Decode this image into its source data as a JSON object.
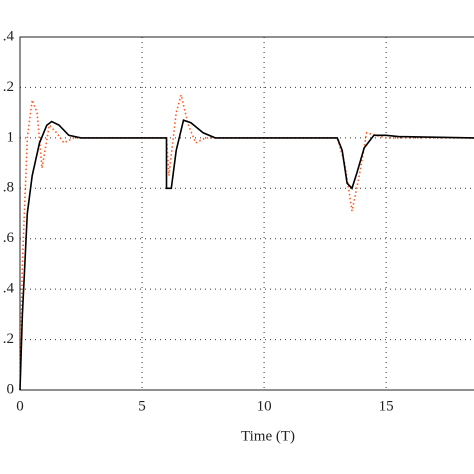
{
  "chart_data": {
    "type": "line",
    "xlabel": "Time (T)",
    "xlim": [
      0,
      18.6
    ],
    "ylim": [
      0,
      1.4
    ],
    "xticks": [
      0,
      5,
      10,
      15
    ],
    "yticks": [
      0,
      {
        "value": 0.2,
        "label": ".2"
      },
      {
        "value": 0.4,
        "label": ".4"
      },
      {
        "value": 0.6,
        "label": ".6"
      },
      {
        "value": 0.8,
        "label": ".8"
      },
      1,
      {
        "value": 1.2,
        "label": ".2"
      },
      {
        "value": 1.4,
        "label": ".4"
      }
    ],
    "grid": true,
    "series": [
      {
        "color": "#ff5a1f",
        "dashed": true,
        "x": [
          0,
          0.1,
          0.3,
          0.5,
          0.7,
          0.9,
          1.2,
          1.5,
          1.8,
          2.2,
          6,
          6.1,
          6.4,
          6.6,
          6.9,
          7.2,
          7.6,
          13,
          13.3,
          13.6,
          13.9,
          14.2,
          14.6,
          15,
          18.6
        ],
        "values": [
          0,
          0.5,
          1,
          1.15,
          1.1,
          0.88,
          1.05,
          1.02,
          0.98,
          1,
          1,
          0.85,
          1.1,
          1.17,
          1.05,
          0.98,
          1,
          1,
          0.9,
          0.71,
          0.85,
          1.02,
          1.01,
          1,
          1
        ]
      },
      {
        "color": "#000000",
        "dashed": false,
        "x": [
          0,
          0.1,
          0.3,
          0.5,
          0.8,
          1.1,
          1.3,
          1.6,
          2,
          2.5,
          6,
          6,
          6.2,
          6.4,
          6.7,
          7,
          7.5,
          8,
          13,
          13.2,
          13.4,
          13.6,
          13.8,
          14.1,
          14.5,
          15,
          15.5,
          18.6
        ],
        "values": [
          0,
          0.3,
          0.7,
          0.85,
          0.98,
          1.05,
          1.065,
          1.05,
          1.01,
          1,
          1,
          0.8,
          0.8,
          0.95,
          1.07,
          1.06,
          1.02,
          1,
          1,
          0.95,
          0.82,
          0.8,
          0.86,
          0.96,
          1.01,
          1.01,
          1.005,
          1
        ]
      }
    ]
  }
}
